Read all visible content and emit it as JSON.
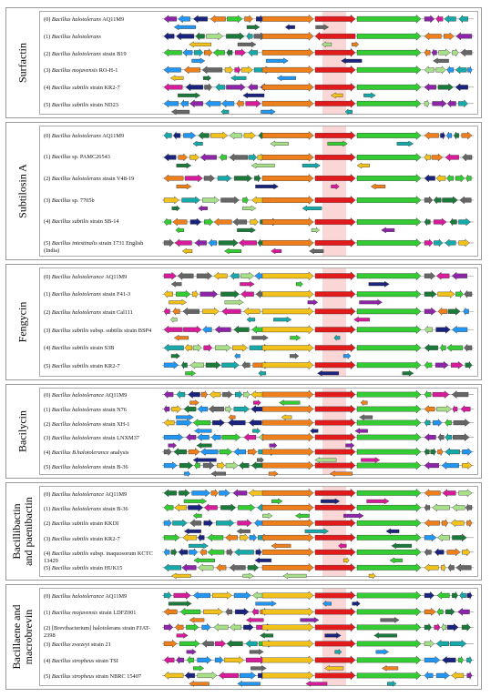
{
  "panels": [
    {
      "label": "Surfactin",
      "rows": [
        {
          "idx": "(0)",
          "genus": "Bacillus halotolerans",
          "rest": " AQ11M9"
        },
        {
          "idx": "(1)",
          "genus": "Bacillus halotolerans",
          "rest": ""
        },
        {
          "idx": "(2)",
          "genus": "Bacillus halotolerans",
          "rest": " strain B19"
        },
        {
          "idx": "(3)",
          "genus": "Bacillus mojavensis",
          "rest": " RO-H-1"
        },
        {
          "idx": "(4)",
          "genus": "Bacillus subtilis",
          "rest": " strain KR2-7"
        },
        {
          "idx": "(5)",
          "genus": "Bacillus subtilis",
          "rest": " strain ND23"
        }
      ]
    },
    {
      "label": "Subtilosin A",
      "rows": [
        {
          "idx": "(0)",
          "genus": "Bacillus halotolerans",
          "rest": " AQ11M9"
        },
        {
          "idx": "(1)",
          "genus": "Bacillus",
          "rest": " sp. PAMC26543"
        },
        {
          "idx": "(2)",
          "genus": "Bacillus halotolerans",
          "rest": " strain V48-19"
        },
        {
          "idx": "(3)",
          "genus": "Bacillus",
          "rest": " sp. 7705b"
        },
        {
          "idx": "(4)",
          "genus": "Bacillus subtilis",
          "rest": " strain SB-14"
        },
        {
          "idx": "(5)",
          "genus": "Bacillus intestinalis",
          "rest": " strain 1731 English (India)"
        }
      ]
    },
    {
      "label": "Fengycin",
      "rows": [
        {
          "idx": "(0)",
          "genus": "Bacillus halotolerance",
          "rest": " AQ11M9"
        },
        {
          "idx": "(1)",
          "genus": "Bacillus halotolerans",
          "rest": " strain F41-3"
        },
        {
          "idx": "(2)",
          "genus": "Bacillus halotolerans",
          "rest": " strain Cal111"
        },
        {
          "idx": "(3)",
          "genus": "Bacillus subtilis",
          "rest": " subsp. subtilis strain BSP4"
        },
        {
          "idx": "(4)",
          "genus": "Bacillus subtilis",
          "rest": " strain S3B"
        },
        {
          "idx": "(5)",
          "genus": "Bacillus subtilis",
          "rest": " strain KR2-7"
        }
      ]
    },
    {
      "label": "Bacilycin",
      "rows": [
        {
          "idx": "(0)",
          "genus": "Bacillus halotolerance",
          "rest": " AQ11M9"
        },
        {
          "idx": "(1)",
          "genus": "Bacillus halotolerans",
          "rest": " strain N76"
        },
        {
          "idx": "(2)",
          "genus": "Bacillus halotolerans",
          "rest": " strain XH-1"
        },
        {
          "idx": "(3)",
          "genus": "Bacillus halotolerans",
          "rest": " strain LNXM37"
        },
        {
          "idx": "(4)",
          "genus": "Bacillus B.halotolerance",
          "rest": " analysis"
        },
        {
          "idx": "(5)",
          "genus": "Bacillus halotolerans",
          "rest": " strain B-36"
        }
      ]
    },
    {
      "label": "Bacillibactin\nand paenibactin",
      "rows": [
        {
          "idx": "(0)",
          "genus": "Bacillus halotolerance",
          "rest": " AQ11M9"
        },
        {
          "idx": "(1)",
          "genus": "Bacillus halotolerans",
          "rest": " strain B-36"
        },
        {
          "idx": "(2)",
          "genus": "Bacillus subtilis",
          "rest": " strain KKDI"
        },
        {
          "idx": "(3)",
          "genus": "Bacillus subtilis",
          "rest": " strain KR2-7"
        },
        {
          "idx": "(4)",
          "genus": "Bacillus subtilis",
          "rest": " subsp. inaquosorum KCTC 13429"
        },
        {
          "idx": "(5)",
          "genus": "Bacillus subtilis",
          "rest": " strain HUK15"
        }
      ]
    },
    {
      "label": "Bacillaene and\nmacrobrevin",
      "rows": [
        {
          "idx": "(0)",
          "genus": "Bacillus halotolerance",
          "rest": " AQ11M9"
        },
        {
          "idx": "(1)",
          "genus": "Bacillus mojavensis",
          "rest": " strain LDFZ001"
        },
        {
          "idx": "(2)",
          "genus": "",
          "rest": "[Brevibacterium] halotolerans strain FJAT-2398"
        },
        {
          "idx": "(3)",
          "genus": "Bacillus zwezeyi",
          "rest": " strain 21"
        },
        {
          "idx": "(4)",
          "genus": "Bacillus stropheus",
          "rest": " strain TSI"
        },
        {
          "idx": "(5)",
          "genus": "Bacillus stropheus",
          "rest": " strain NBRC 15407"
        }
      ]
    }
  ],
  "colors": {
    "core": "#e31a1c",
    "orange": "#ee7f1a",
    "green": "#33cc33",
    "yellow": "#f2c21b",
    "teal": "#16a9a9",
    "navy": "#1a237e",
    "blue": "#2196f3",
    "purple": "#8e24aa",
    "grey": "#666666",
    "darkgreen": "#1b7a3a",
    "lightgreen": "#a8e08a",
    "magenta": "#d81b9b"
  }
}
